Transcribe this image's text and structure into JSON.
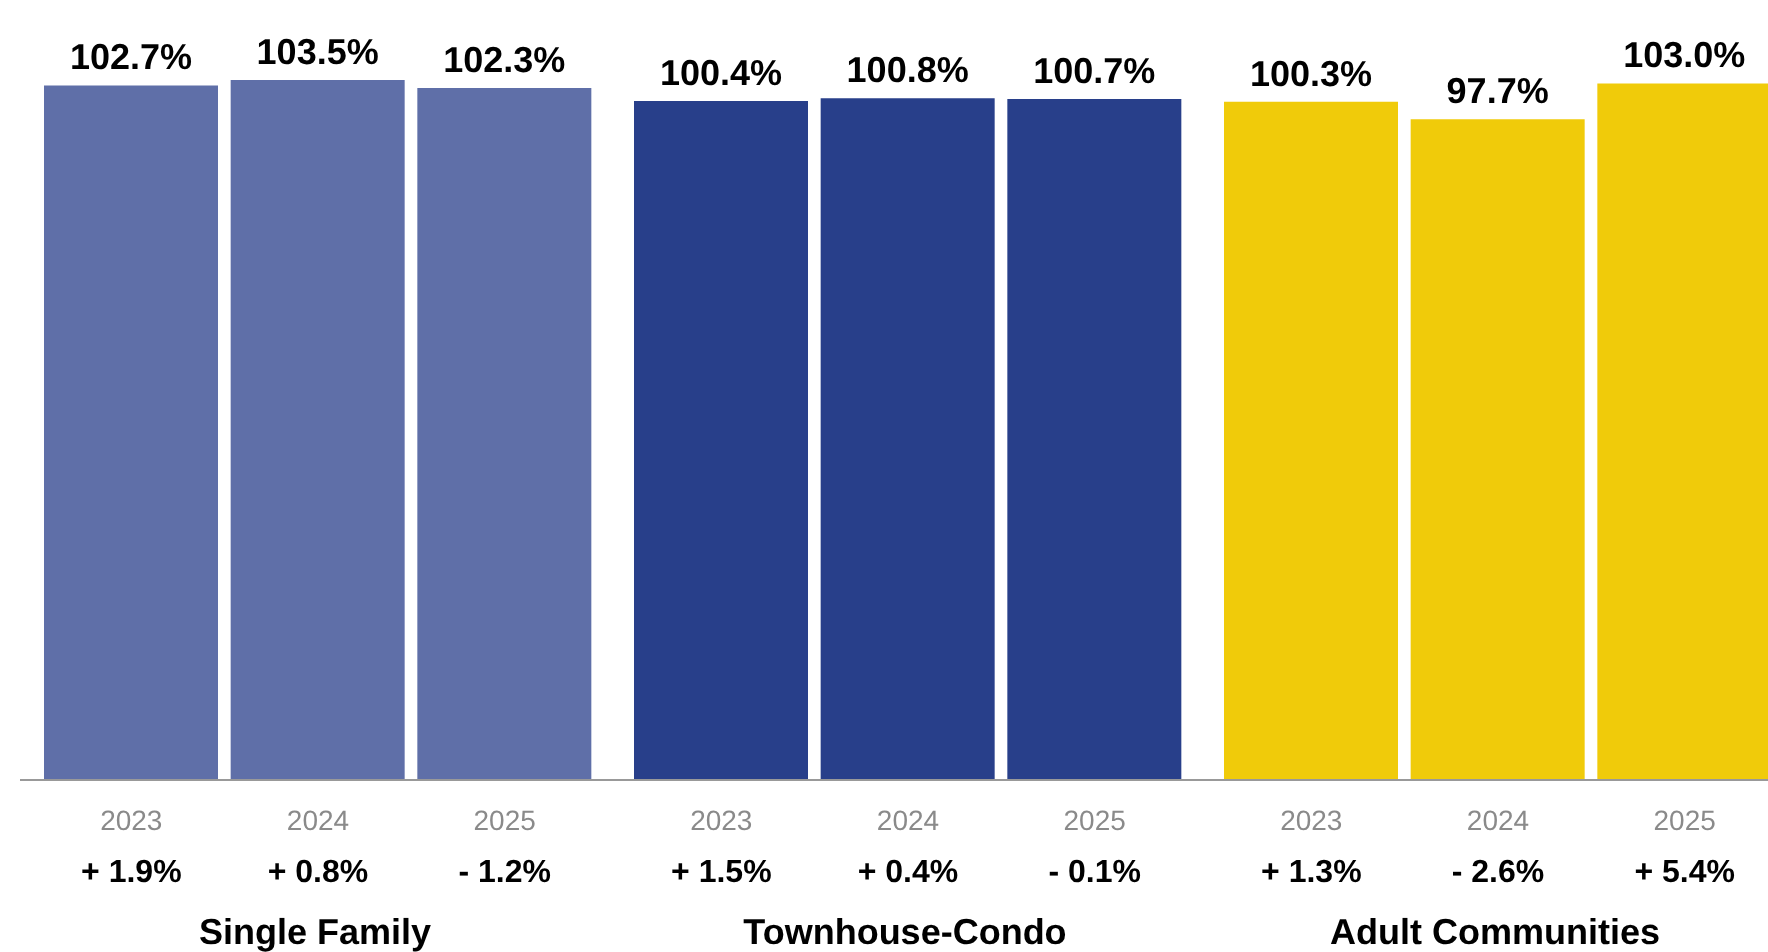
{
  "chart_data": [
    {
      "type": "bar",
      "categories": [
        "2023",
        "2024",
        "2025"
      ],
      "values": [
        102.7,
        103.5,
        102.3
      ],
      "color": "#5f6fa8",
      "value_labels": [
        "102.7%",
        "103.5%",
        "102.3%"
      ],
      "tick_labels": "x",
      "xlabel": "Single Family",
      "annotations": [
        "+ 1.9%",
        "+ 0.8%",
        "- 1.2%"
      ]
    },
    {
      "type": "bar",
      "categories": [
        "2023",
        "2024",
        "2025"
      ],
      "values": [
        100.4,
        100.8,
        100.7
      ],
      "color": "#283f8a",
      "value_labels": [
        "100.4%",
        "100.8%",
        "100.7%"
      ],
      "tick_labels": "x",
      "xlabel": "Townhouse-Condo",
      "annotations": [
        "+ 1.5%",
        "+ 0.4%",
        "- 0.1%"
      ]
    },
    {
      "type": "bar",
      "categories": [
        "2023",
        "2024",
        "2025"
      ],
      "values": [
        100.3,
        97.7,
        103.0
      ],
      "color": "#f0cb0a",
      "value_labels": [
        "100.3%",
        "97.7%",
        "103.0%"
      ],
      "tick_labels": "x",
      "xlabel": "Adult Communities",
      "annotations": [
        "+ 1.3%",
        "- 2.6%",
        "+ 5.4%"
      ]
    }
  ]
}
